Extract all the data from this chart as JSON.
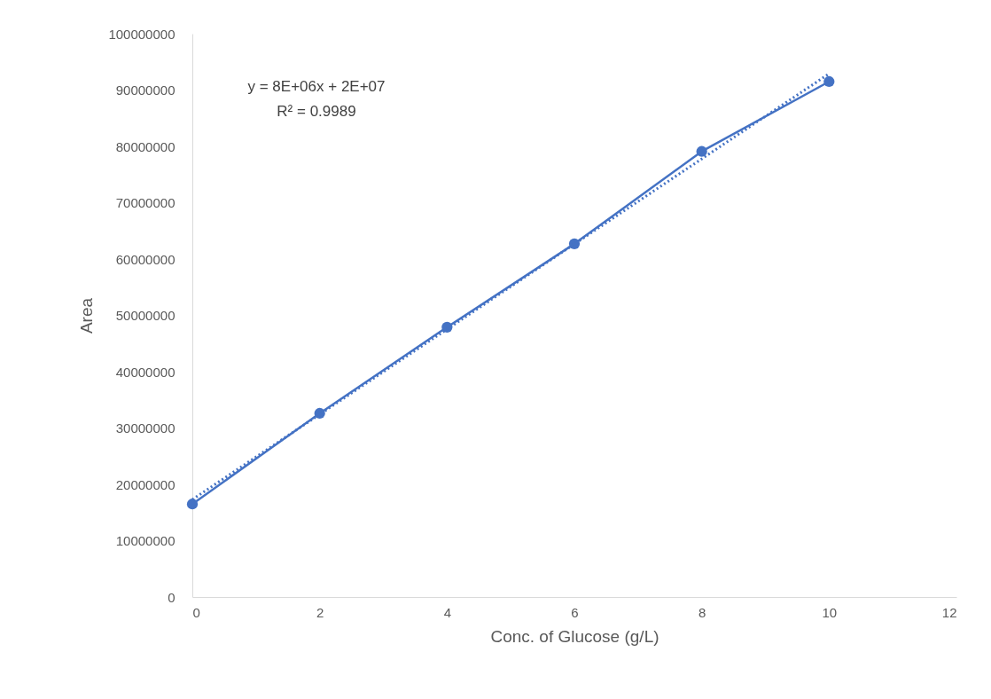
{
  "chart_data": {
    "type": "line",
    "xlabel": "Conc. of Glucose (g/L)",
    "ylabel": "Area",
    "x": [
      0,
      2,
      4,
      6,
      8,
      10
    ],
    "series": [
      {
        "color": "#4472c4",
        "marker": "circle",
        "line_style": "solid",
        "values": [
          16500000,
          32600000,
          47900000,
          62700000,
          79100000,
          91500000
        ]
      },
      {
        "type": "line",
        "color": "#4472c4",
        "marker": "none",
        "line_style": "dotted",
        "x": [
          0,
          10
        ],
        "values": [
          17300000,
          92900000
        ]
      }
    ],
    "xlim": [
      0,
      12
    ],
    "xticks": [
      0,
      2,
      4,
      6,
      8,
      10,
      12
    ],
    "ylim": [
      0,
      100000000
    ],
    "yticks": [
      0,
      10000000,
      20000000,
      30000000,
      40000000,
      50000000,
      60000000,
      70000000,
      80000000,
      90000000,
      100000000
    ],
    "grid": false,
    "annotations": [
      "y = 8E+06x + 2E+07",
      "R² = 0.9989"
    ]
  }
}
